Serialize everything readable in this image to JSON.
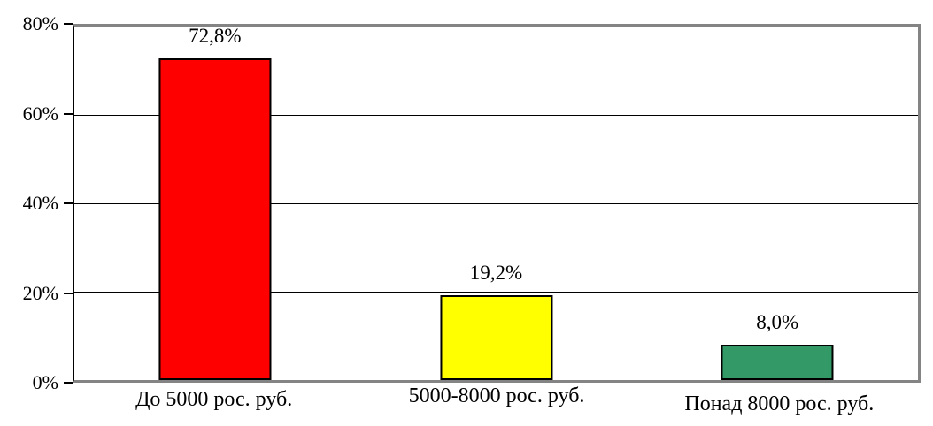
{
  "chart_data": {
    "type": "bar",
    "title": "",
    "xlabel": "",
    "ylabel": "",
    "categories": [
      "До 5000 рос. руб.",
      "5000-8000 рос. руб.",
      "Понад 8000 рос. руб."
    ],
    "values": [
      72.8,
      19.2,
      8.0
    ],
    "value_labels": [
      "72,8%",
      "19,2%",
      "8,0%"
    ],
    "bar_colors": [
      "#FF0000",
      "#FFFF00",
      "#339966"
    ],
    "ylim": [
      0,
      80
    ],
    "yticks": [
      0,
      20,
      40,
      60,
      80
    ],
    "ytick_labels": [
      "0%",
      "20%",
      "40%",
      "60%",
      "80%"
    ],
    "grid": true,
    "legend": "none"
  },
  "styles": {
    "background": "#FFFFFF",
    "frame_color": "#848484",
    "axis_color": "#000000",
    "gridline_color": "#000000",
    "text_color": "#000000",
    "bar_border_color": "#000000"
  }
}
